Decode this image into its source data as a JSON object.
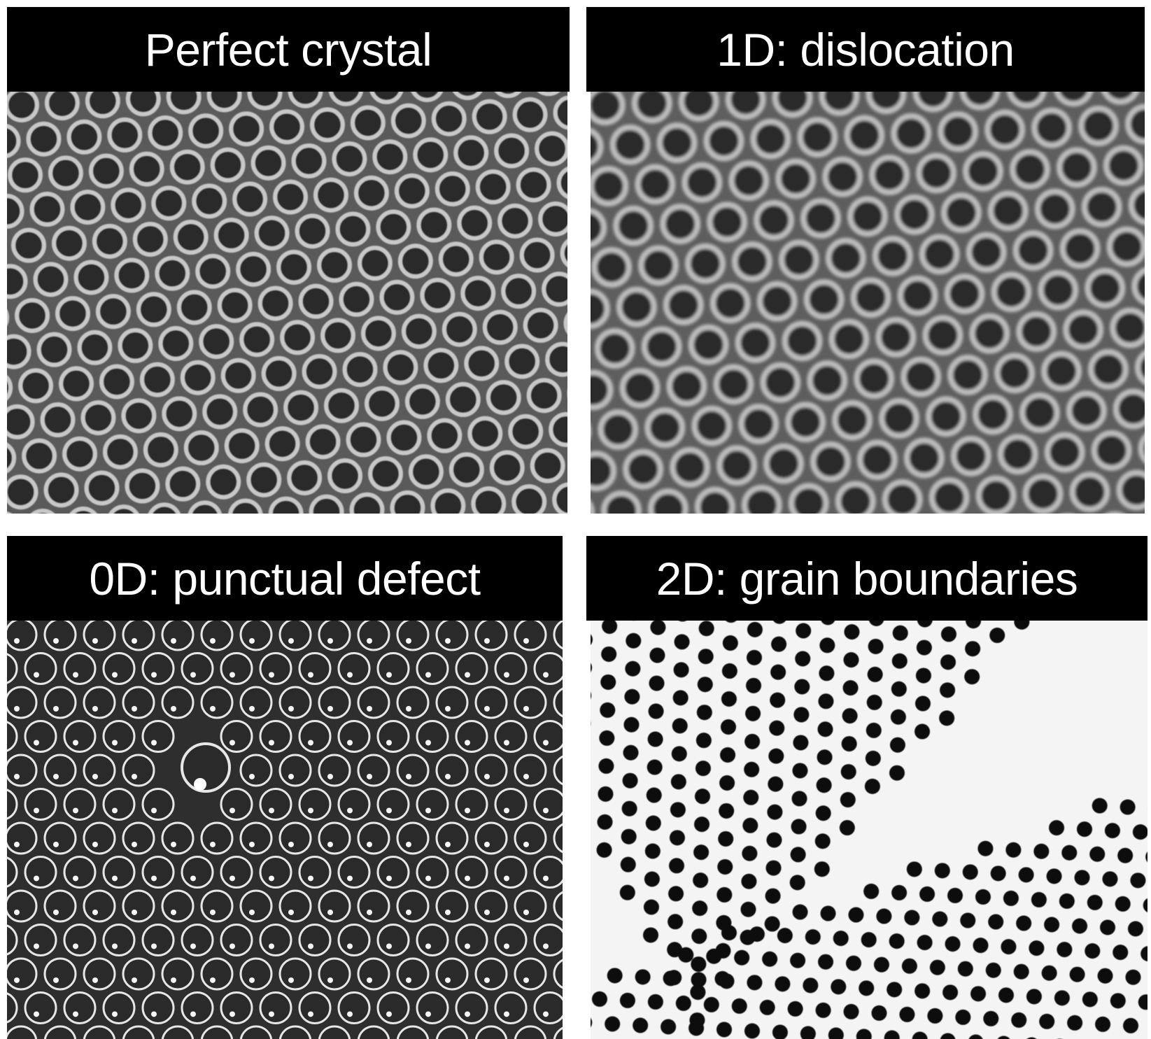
{
  "panels": [
    {
      "title": "Perfect crystal",
      "style": "grey-soft",
      "defect": "none"
    },
    {
      "title": "1D: dislocation",
      "style": "grey-blur",
      "defect": "dislocation"
    },
    {
      "title": "0D: punctual defect",
      "style": "dark-rings",
      "defect": "vacancy"
    },
    {
      "title": "2D: grain boundaries",
      "style": "high-contrast",
      "defect": "grain-boundary"
    }
  ]
}
